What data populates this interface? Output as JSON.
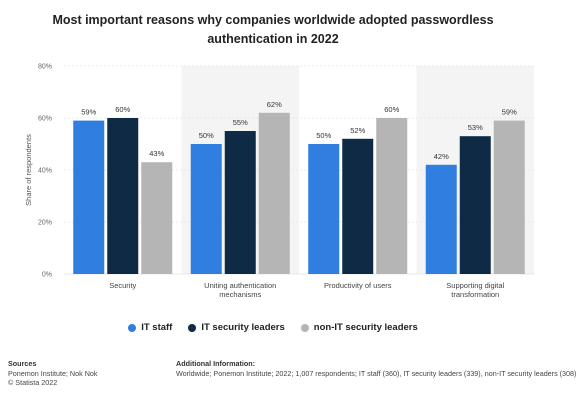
{
  "chart_data": {
    "type": "bar",
    "title": "Most important reasons why companies worldwide adopted passwordless authentication in 2022",
    "ylabel": "Share of respondents",
    "xlabel": "",
    "ylim": [
      0,
      80
    ],
    "yticks": [
      "0%",
      "20%",
      "40%",
      "60%",
      "80%"
    ],
    "grid": true,
    "legend_position": "bottom",
    "categories": [
      [
        "Security"
      ],
      [
        "Uniting authentication",
        "mechanisms"
      ],
      [
        "Productivity of users"
      ],
      [
        "Supporting digital",
        "transformation"
      ]
    ],
    "series": [
      {
        "name": "IT staff",
        "color": "#2f7ee0",
        "values": [
          59,
          50,
          50,
          42
        ]
      },
      {
        "name": "IT security leaders",
        "color": "#0f2a45",
        "values": [
          60,
          55,
          52,
          53
        ]
      },
      {
        "name": "non-IT security leaders",
        "color": "#b5b5b5",
        "values": [
          43,
          62,
          60,
          59
        ]
      }
    ]
  },
  "footer": {
    "sources_label": "Sources",
    "sources_line1": "Ponemon Institute; Nok Nok",
    "sources_line2": "© Statista 2022",
    "additional_label": "Additional Information:",
    "additional_text": "Worldwide; Ponemon Institute; 2022; 1,007 respondents; IT staff (360), IT security leaders (339), non-IT security leaders (308)"
  }
}
